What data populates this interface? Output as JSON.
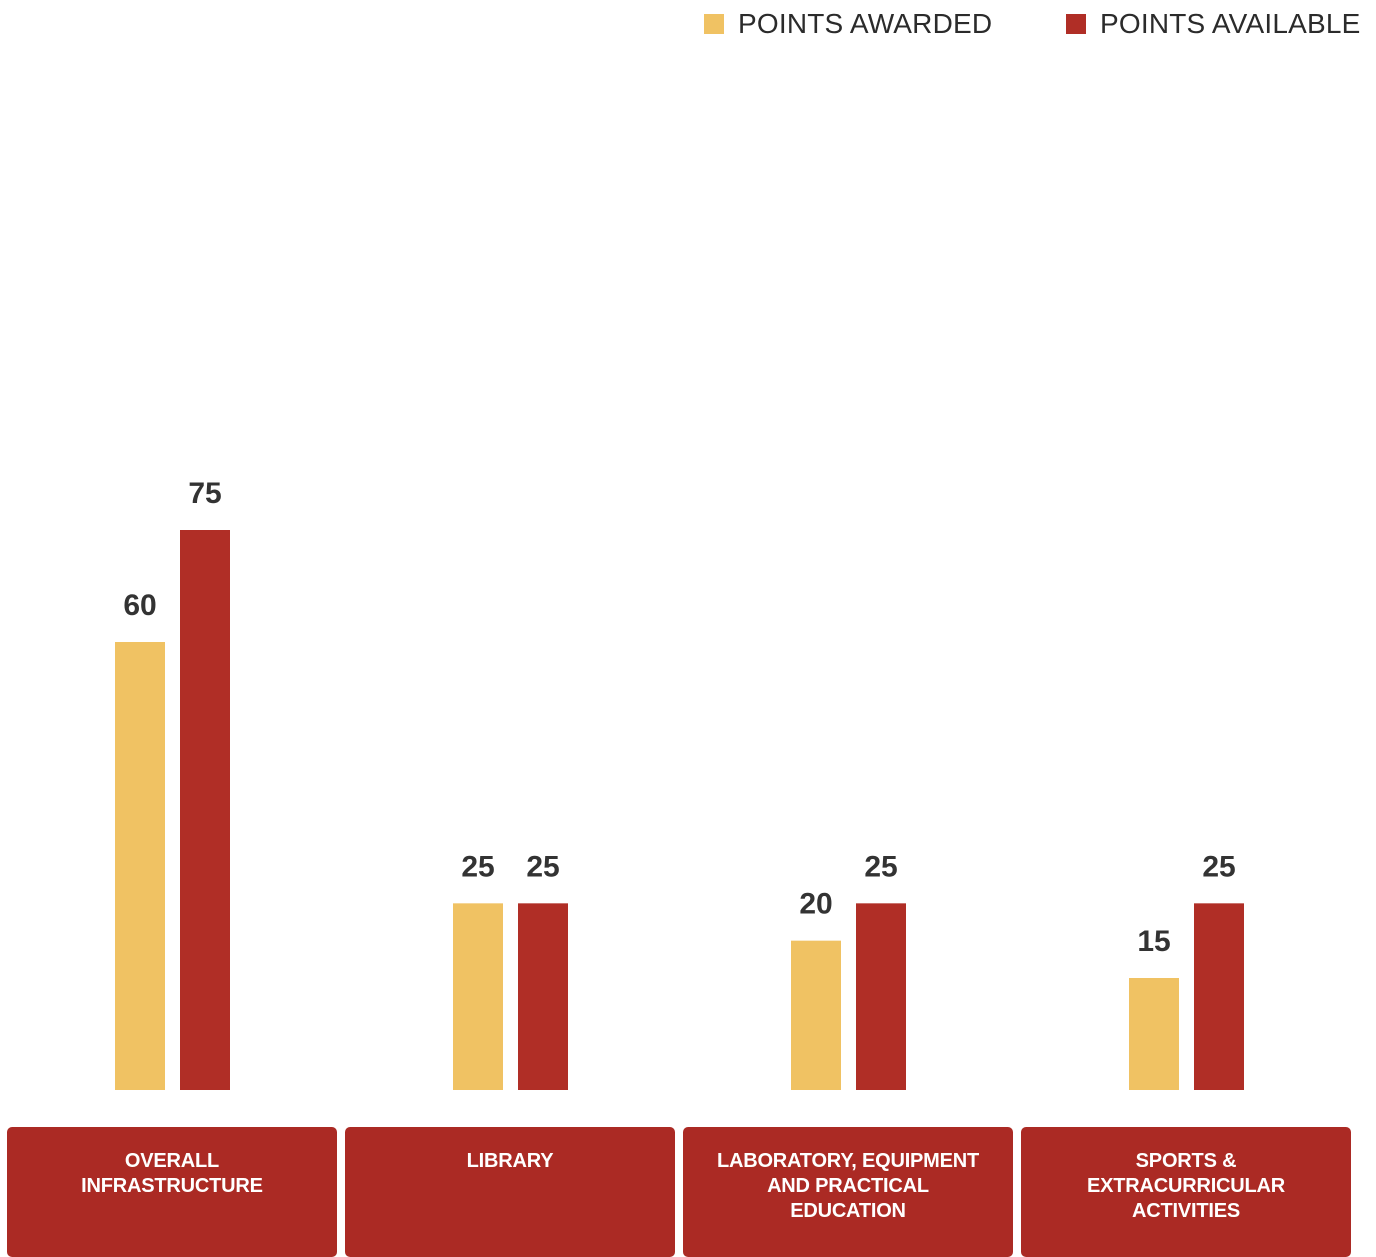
{
  "legend": {
    "awarded_label": "POINTS AWARDED",
    "available_label": "POINTS AVAILABLE"
  },
  "colors": {
    "awarded": "#f0c263",
    "available": "#b02e26",
    "category_box": "#ab2a24"
  },
  "chart_data": {
    "type": "bar",
    "categories": [
      "OVERALL\nINFRASTRUCTURE",
      "LIBRARY",
      "LABORATORY, EQUIPMENT\nAND PRACTICAL\nEDUCATION",
      "SPORTS &\nEXTRACURRICULAR\nACTIVITIES"
    ],
    "series": [
      {
        "name": "POINTS AWARDED",
        "values": [
          60,
          25,
          20,
          15
        ]
      },
      {
        "name": "POINTS AVAILABLE",
        "values": [
          75,
          25,
          25,
          25
        ]
      }
    ],
    "ylim": [
      0,
      75
    ],
    "grid": false,
    "legend_position": "top-right"
  }
}
